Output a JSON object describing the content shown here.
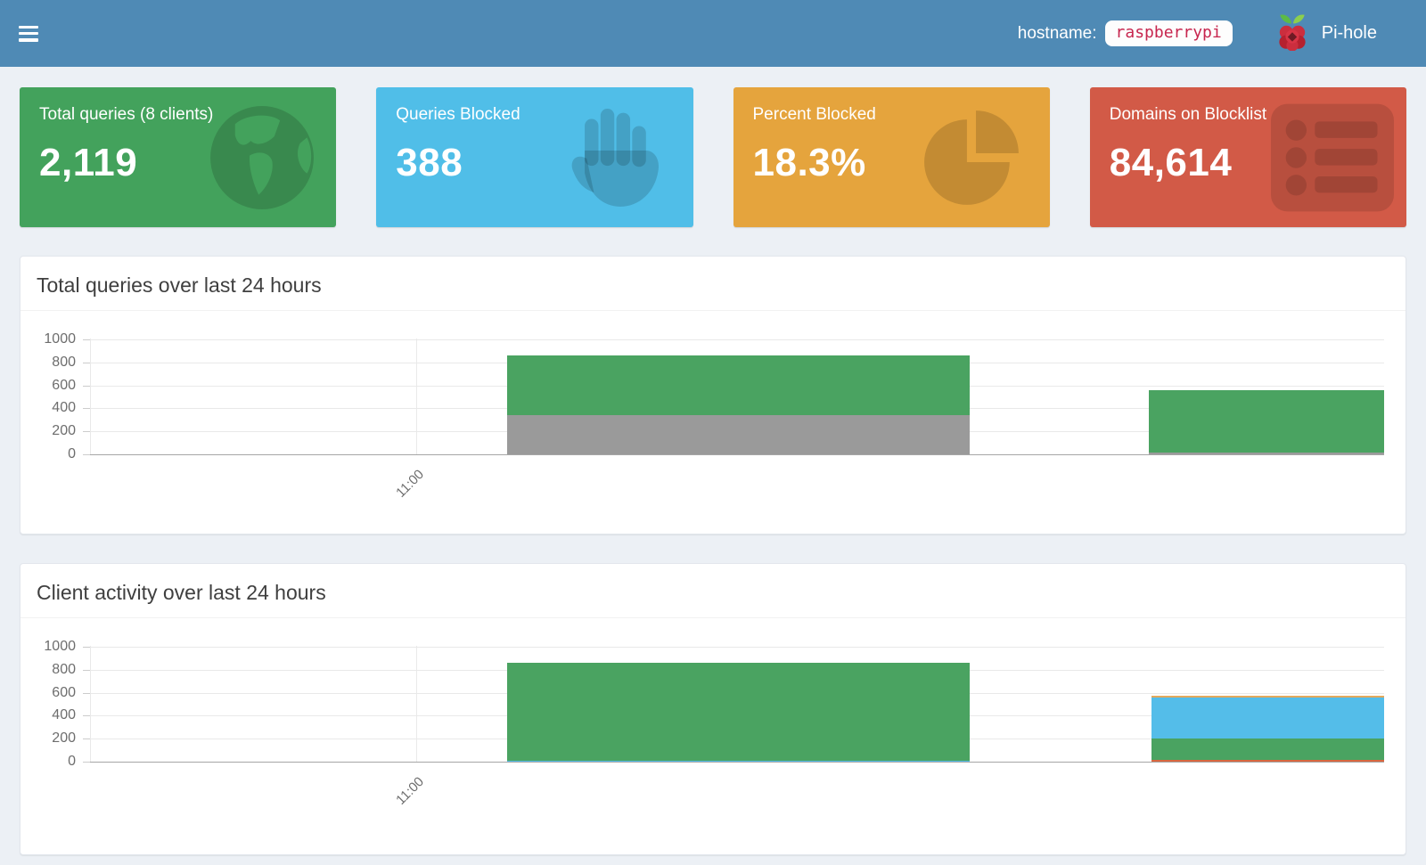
{
  "navbar": {
    "hostname_label": "hostname:",
    "hostname_value": "raspberrypi",
    "brand": "Pi-hole"
  },
  "cards": [
    {
      "title": "Total queries (8 clients)",
      "value": "2,119",
      "color": "#43a25c",
      "icon": "globe-icon"
    },
    {
      "title": "Queries Blocked",
      "value": "388",
      "color": "#50bee8",
      "icon": "hand-paper-icon"
    },
    {
      "title": "Percent Blocked",
      "value": "18.3%",
      "color": "#e5a43d",
      "icon": "pie-chart-icon"
    },
    {
      "title": "Domains on Blocklist",
      "value": "84,614",
      "color": "#d25a47",
      "icon": "list-icon"
    }
  ],
  "colors": {
    "navbar": "#4f8ab5",
    "page_background": "#ecf0f5",
    "bar_green": "#4aa361",
    "bar_gray": "#9a9a9a",
    "bar_blue": "#54bde9",
    "bar_orange": "#e3a95d",
    "bar_red_orange": "#d9663f"
  },
  "chart_data": [
    {
      "type": "bar",
      "stacked": true,
      "title": "Total queries over last 24 hours",
      "xlabel": "",
      "ylabel": "",
      "ylim": [
        0,
        1000
      ],
      "yticks": [
        0,
        200,
        400,
        600,
        800,
        1000
      ],
      "grid": true,
      "legend": "none",
      "xticks": [
        {
          "label": "11:00",
          "pos_pct": 25.2
        }
      ],
      "bars": [
        {
          "left_pct": 32.2,
          "width_pct": 35.8,
          "segments": [
            {
              "series": "gray",
              "color": "#9a9a9a",
              "value": 345
            },
            {
              "series": "green",
              "color": "#4aa361",
              "value": 515
            }
          ]
        },
        {
          "left_pct": 81.8,
          "width_pct": 18.2,
          "segments": [
            {
              "series": "gray",
              "color": "#9a9a9a",
              "value": 12
            },
            {
              "series": "green",
              "color": "#4aa361",
              "value": 548
            }
          ]
        }
      ]
    },
    {
      "type": "bar",
      "stacked": true,
      "title": "Client activity over last 24 hours",
      "xlabel": "",
      "ylabel": "",
      "ylim": [
        0,
        1000
      ],
      "yticks": [
        0,
        200,
        400,
        600,
        800,
        1000
      ],
      "grid": true,
      "legend": "none",
      "xticks": [
        {
          "label": "11:00",
          "pos_pct": 25.2
        }
      ],
      "bars": [
        {
          "left_pct": 32.2,
          "width_pct": 35.8,
          "segments": [
            {
              "series": "blue",
              "color": "#54bde9",
              "value": 6
            },
            {
              "series": "green",
              "color": "#4aa361",
              "value": 854
            }
          ]
        },
        {
          "left_pct": 82.0,
          "width_pct": 18.0,
          "segments": [
            {
              "series": "red-orange",
              "color": "#d9663f",
              "value": 14
            },
            {
              "series": "green",
              "color": "#4aa361",
              "value": 186
            },
            {
              "series": "blue",
              "color": "#54bde9",
              "value": 360
            },
            {
              "series": "orange",
              "color": "#e3a95d",
              "value": 15
            }
          ]
        }
      ]
    }
  ]
}
